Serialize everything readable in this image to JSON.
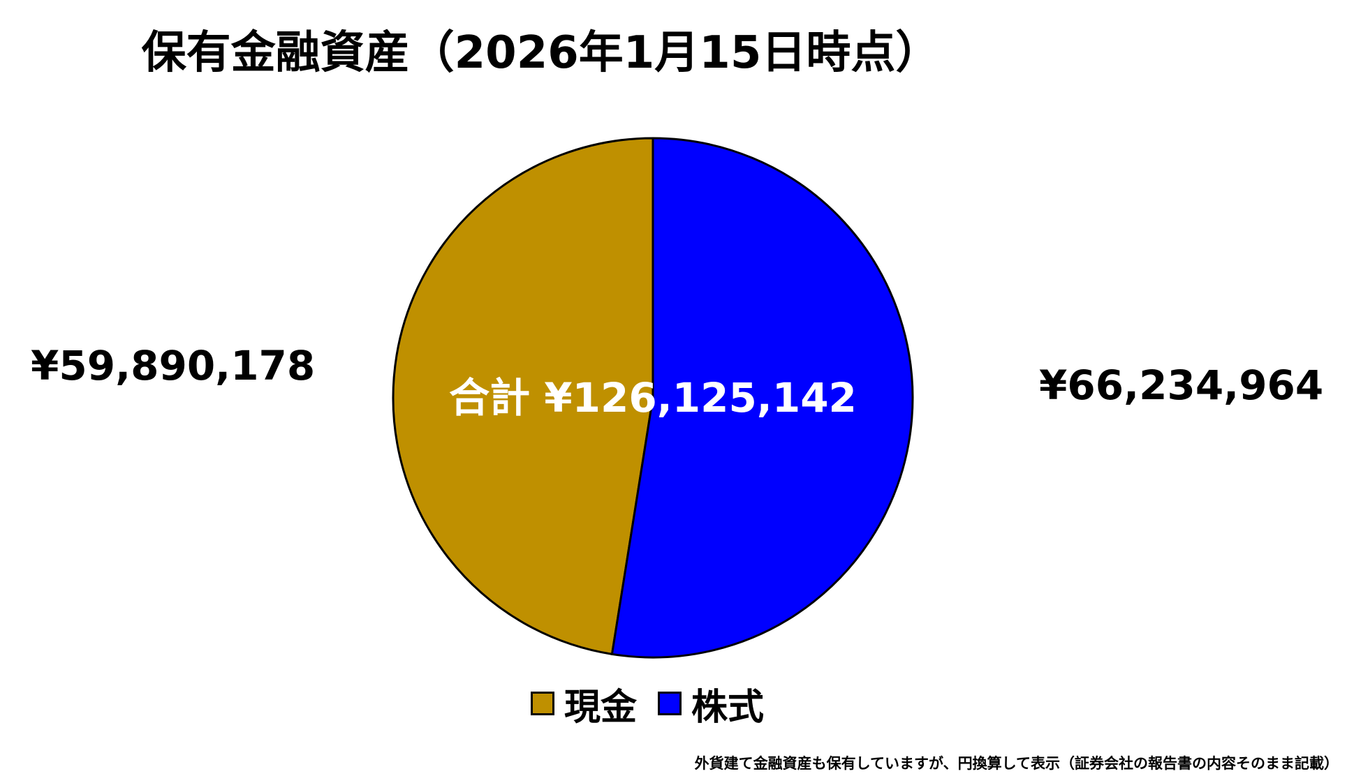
{
  "chart_data": {
    "type": "pie",
    "title": "保有金融資産（2026年1月15日時点）",
    "center_label": "合計 ¥126,125,142",
    "categories": [
      "現金",
      "株式"
    ],
    "values": [
      59890178,
      66234964
    ],
    "value_labels": [
      "¥59,890,178",
      "¥66,234,964"
    ],
    "colors": [
      "#BF9000",
      "#0000FF"
    ],
    "legend_position": "bottom"
  },
  "footnote": "外貨建て金融資産も保有していますが、円換算して表示（証券会社の報告書の内容そのまま記載）"
}
